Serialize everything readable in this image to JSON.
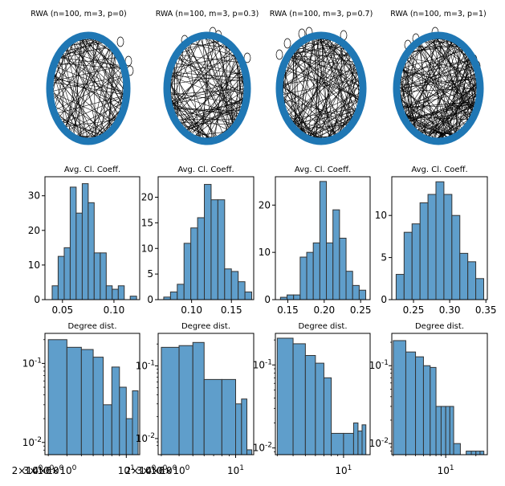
{
  "figure": {
    "network_titles": [
      "RWA (n=100, m=3, p=0)",
      "RWA (n=100, m=3, p=0.3)",
      "RWA (n=100, m=3, p=0.7)",
      "RWA (n=100, m=3, p=1)"
    ],
    "node_color": "#1f77b4",
    "hist_color": "#5f9ecb",
    "hist_edge": "#333333"
  },
  "chart_data": [
    {
      "type": "bar",
      "title": "Avg. Cl. Coeff.",
      "edges": [
        0.04,
        0.0458,
        0.0517,
        0.0575,
        0.0633,
        0.0692,
        0.075,
        0.0808,
        0.0867,
        0.0925,
        0.0983,
        0.1042,
        0.11,
        0.1158,
        0.122
      ],
      "values": [
        4,
        12.5,
        15,
        32.5,
        25,
        33.5,
        28,
        13.5,
        13.5,
        4,
        3,
        4,
        0,
        1
      ],
      "xlim": [
        0.033,
        0.125
      ],
      "ylim": [
        0,
        35.5
      ],
      "xticks": [
        0.05,
        0.1
      ],
      "xtick_labels": [
        "0.05",
        "0.10"
      ],
      "yticks": [
        0,
        10,
        20,
        30
      ],
      "ytick_labels": [
        "0",
        "10",
        "20",
        "30"
      ]
    },
    {
      "type": "bar",
      "title": "Avg. Cl. Coeff.",
      "edges": [
        0.065,
        0.0735,
        0.082,
        0.0905,
        0.099,
        0.1075,
        0.116,
        0.1245,
        0.133,
        0.1415,
        0.15,
        0.1585,
        0.167,
        0.1755
      ],
      "values": [
        0.5,
        1.5,
        3,
        11,
        14,
        16,
        22.5,
        19.5,
        19.5,
        6,
        5.5,
        3.5,
        1.5
      ],
      "xlim": [
        0.058,
        0.178
      ],
      "ylim": [
        0,
        24
      ],
      "xticks": [
        0.1,
        0.15
      ],
      "xtick_labels": [
        "0.10",
        "0.15"
      ],
      "yticks": [
        0,
        5,
        10,
        15,
        20
      ],
      "ytick_labels": [
        "0",
        "5",
        "10",
        "15",
        "20"
      ]
    },
    {
      "type": "bar",
      "title": "Avg. Cl. Coeff.",
      "edges": [
        0.14,
        0.149,
        0.158,
        0.167,
        0.176,
        0.185,
        0.194,
        0.203,
        0.212,
        0.221,
        0.23,
        0.239,
        0.248,
        0.257
      ],
      "values": [
        0.5,
        1,
        1,
        9,
        10,
        12,
        25,
        12,
        19,
        13,
        6,
        3,
        2
      ],
      "xlim": [
        0.133,
        0.263
      ],
      "ylim": [
        0,
        26
      ],
      "xticks": [
        0.15,
        0.2,
        0.25
      ],
      "xtick_labels": [
        "0.15",
        "0.20",
        "0.25"
      ],
      "yticks": [
        0,
        10,
        20
      ],
      "ytick_labels": [
        "0",
        "10",
        "20"
      ]
    },
    {
      "type": "bar",
      "title": "Avg. Cl. Coeff.",
      "edges": [
        0.226,
        0.237,
        0.248,
        0.259,
        0.27,
        0.281,
        0.292,
        0.303,
        0.314,
        0.325,
        0.336,
        0.347
      ],
      "values": [
        3,
        8,
        9,
        11.5,
        12.5,
        14,
        12.5,
        10,
        5.5,
        4.5,
        2.5
      ],
      "xlim": [
        0.22,
        0.352
      ],
      "ylim": [
        0,
        14.6
      ],
      "xticks": [
        0.25,
        0.3,
        0.35
      ],
      "xtick_labels": [
        "0.25",
        "0.30",
        "0.35"
      ],
      "yticks": [
        0,
        5,
        10
      ],
      "ytick_labels": [
        "0",
        "5",
        "10"
      ]
    },
    {
      "type": "bar",
      "title": "Degree dist.",
      "xscale": "log",
      "yscale": "log",
      "edges": [
        3,
        4,
        5,
        6,
        7,
        8,
        9,
        10,
        11,
        12
      ],
      "values": [
        0.2,
        0.16,
        0.15,
        0.12,
        0.03,
        0.09,
        0.05,
        0.02,
        0.045
      ],
      "xlim": [
        2.85,
        12.3
      ],
      "ylim": [
        0.007,
        0.24
      ],
      "xtick_labels": [
        "2×10^0",
        "3×10^0",
        "4×10^0",
        "6×10^0",
        "10^1"
      ],
      "ytick_labels": [
        "10^-1",
        "10^-2"
      ]
    },
    {
      "type": "bar",
      "title": "Degree dist.",
      "xscale": "log",
      "yscale": "log",
      "edges": [
        3,
        4,
        5,
        6,
        8,
        10,
        11,
        12,
        13
      ],
      "values": [
        0.18,
        0.19,
        0.21,
        0.065,
        0.065,
        0.03,
        0.035,
        0.007
      ],
      "xlim": [
        2.85,
        13.4
      ],
      "ylim": [
        0.006,
        0.28
      ],
      "xtick_labels": [
        "2×10^0",
        "3×10^0",
        "4×10^0",
        "6×10^0",
        "10^1"
      ],
      "ytick_labels": [
        "10^-1",
        "10^-2"
      ]
    },
    {
      "type": "bar",
      "title": "Degree dist.",
      "xscale": "log",
      "yscale": "log",
      "edges": [
        3,
        4,
        5,
        6,
        7,
        8,
        10,
        12,
        13,
        14,
        15
      ],
      "values": [
        0.21,
        0.18,
        0.13,
        0.105,
        0.07,
        0.015,
        0.015,
        0.02,
        0.016,
        0.019,
        0.015
      ],
      "xlim": [
        2.9,
        16.2
      ],
      "ylim": [
        0.0083,
        0.24
      ],
      "xtick_labels": [
        "10^1"
      ],
      "ytick_labels": [
        "10^-1",
        "10^-2"
      ]
    },
    {
      "type": "bar",
      "title": "Degree dist.",
      "xscale": "log",
      "yscale": "log",
      "edges": [
        3,
        4,
        5,
        6,
        7,
        8,
        9,
        10,
        11,
        12,
        14,
        16,
        18,
        20,
        22,
        24
      ],
      "values": [
        0.21,
        0.15,
        0.13,
        0.1,
        0.095,
        0.03,
        0.03,
        0.03,
        0.03,
        0.01,
        0.007,
        0.008,
        0.008,
        0.008,
        0.008
      ],
      "xlim": [
        2.9,
        26
      ],
      "ylim": [
        0.0072,
        0.26
      ],
      "xtick_labels": [
        "10^1"
      ],
      "ytick_labels": [
        "10^-1",
        "10^-2"
      ]
    }
  ]
}
